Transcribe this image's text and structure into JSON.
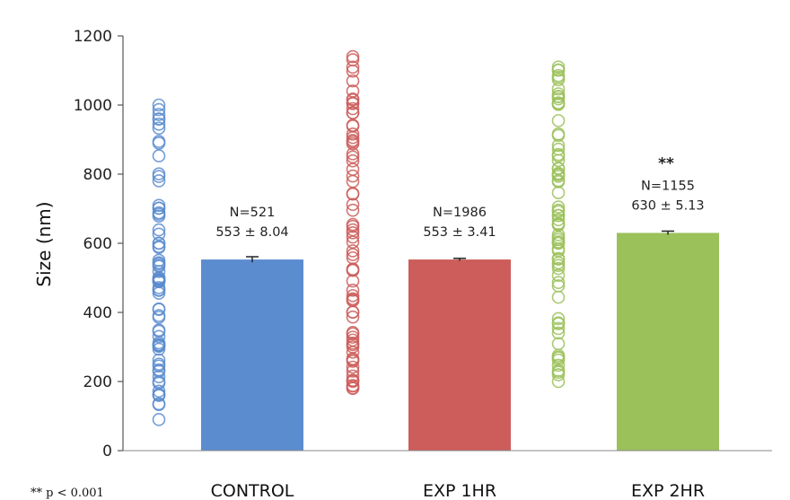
{
  "chart_data": {
    "type": "bar",
    "ylabel": "Size (nm)",
    "xlabel": "",
    "ylim": [
      0,
      1200
    ],
    "yticks": [
      0,
      200,
      400,
      600,
      800,
      1000,
      1200
    ],
    "grid": false,
    "categories": [
      "CONTROL",
      "EXP 1HR",
      "EXP 2HR"
    ],
    "values": [
      553,
      553,
      630
    ],
    "errors": [
      8.04,
      3.41,
      5.13
    ],
    "colors": [
      "#5b8ccf",
      "#cc5d5b",
      "#9bc15b"
    ],
    "annotations": [
      {
        "n_label": "N=521",
        "mean_label": "553 ± 8.04",
        "significance": ""
      },
      {
        "n_label": "N=1986",
        "mean_label": "553 ± 3.41",
        "significance": ""
      },
      {
        "n_label": "N=1155",
        "mean_label": "630 ± 5.13",
        "significance": "**"
      }
    ],
    "scatter_ranges": [
      {
        "min": 90,
        "max": 1000
      },
      {
        "min": 180,
        "max": 1140
      },
      {
        "min": 200,
        "max": 1110
      }
    ],
    "footnote": "** p < 0.001"
  }
}
